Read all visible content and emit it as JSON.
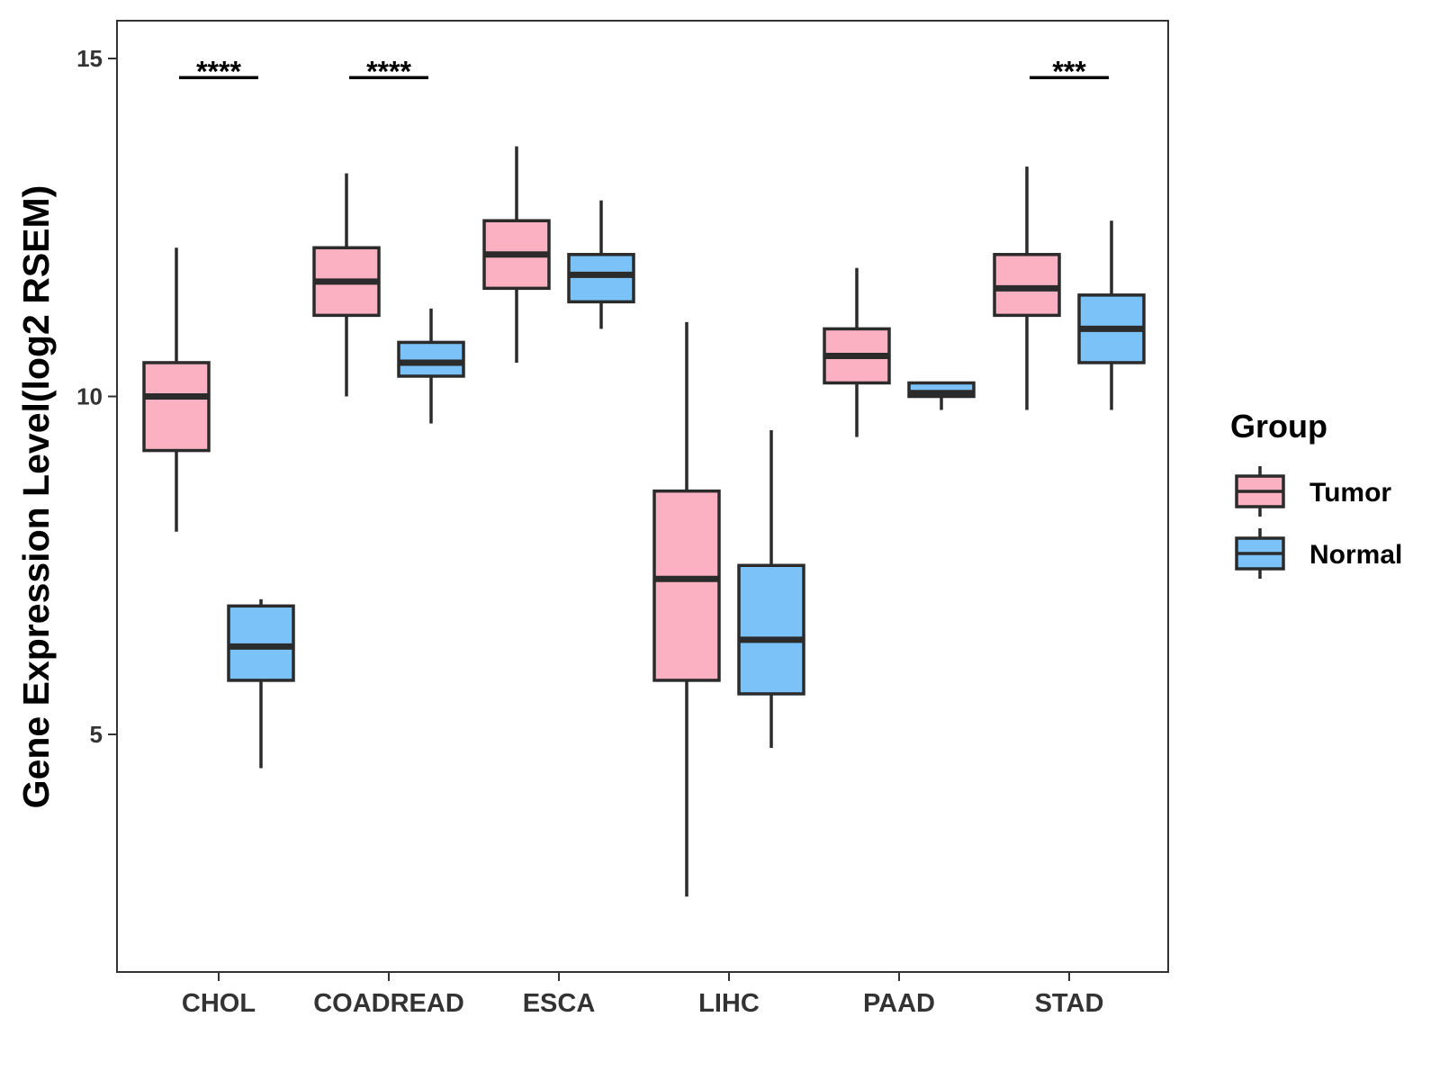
{
  "chart_data": {
    "type": "boxplot",
    "title": "",
    "xlabel": "",
    "ylabel": "Gene Expression Level(log2 RSEM)",
    "ylim": [
      1.5,
      15.5
    ],
    "yticks": [
      5,
      10,
      15
    ],
    "categories": [
      "CHOL",
      "COADREAD",
      "ESCA",
      "LIHC",
      "PAAD",
      "STAD"
    ],
    "legend": {
      "title": "Group",
      "placement": "right",
      "entries": [
        "Tumor",
        "Normal"
      ]
    },
    "colors": {
      "Tumor": "#FBB1C2",
      "Normal": "#7AC2F8",
      "outline": "#2b2b2b"
    },
    "series": [
      {
        "name": "Tumor",
        "boxes": [
          {
            "min": 8.0,
            "q1": 9.2,
            "median": 10.0,
            "q3": 10.5,
            "max": 12.2
          },
          {
            "min": 10.0,
            "q1": 11.2,
            "median": 11.7,
            "q3": 12.2,
            "max": 13.3
          },
          {
            "min": 10.5,
            "q1": 11.6,
            "median": 12.1,
            "q3": 12.6,
            "max": 13.7
          },
          {
            "min": 2.6,
            "q1": 5.8,
            "median": 7.3,
            "q3": 8.6,
            "max": 11.1
          },
          {
            "min": 9.4,
            "q1": 10.2,
            "median": 10.6,
            "q3": 11.0,
            "max": 11.9
          },
          {
            "min": 9.8,
            "q1": 11.2,
            "median": 11.6,
            "q3": 12.1,
            "max": 13.4
          }
        ]
      },
      {
        "name": "Normal",
        "boxes": [
          {
            "min": 4.5,
            "q1": 5.8,
            "median": 6.3,
            "q3": 6.9,
            "max": 7.0
          },
          {
            "min": 9.6,
            "q1": 10.3,
            "median": 10.5,
            "q3": 10.8,
            "max": 11.3
          },
          {
            "min": 11.0,
            "q1": 11.4,
            "median": 11.8,
            "q3": 12.1,
            "max": 12.9
          },
          {
            "min": 4.8,
            "q1": 5.6,
            "median": 6.4,
            "q3": 7.5,
            "max": 9.5
          },
          {
            "min": 9.8,
            "q1": 10.0,
            "median": 10.05,
            "q3": 10.2,
            "max": 10.2
          },
          {
            "min": 9.8,
            "q1": 10.5,
            "median": 11.0,
            "q3": 11.5,
            "max": 12.6
          }
        ]
      }
    ],
    "significance": [
      {
        "category": "CHOL",
        "label": "****",
        "y": 14.85
      },
      {
        "category": "COADREAD",
        "label": "****",
        "y": 14.85
      },
      {
        "category": "STAD",
        "label": "***",
        "y": 14.85
      }
    ]
  }
}
